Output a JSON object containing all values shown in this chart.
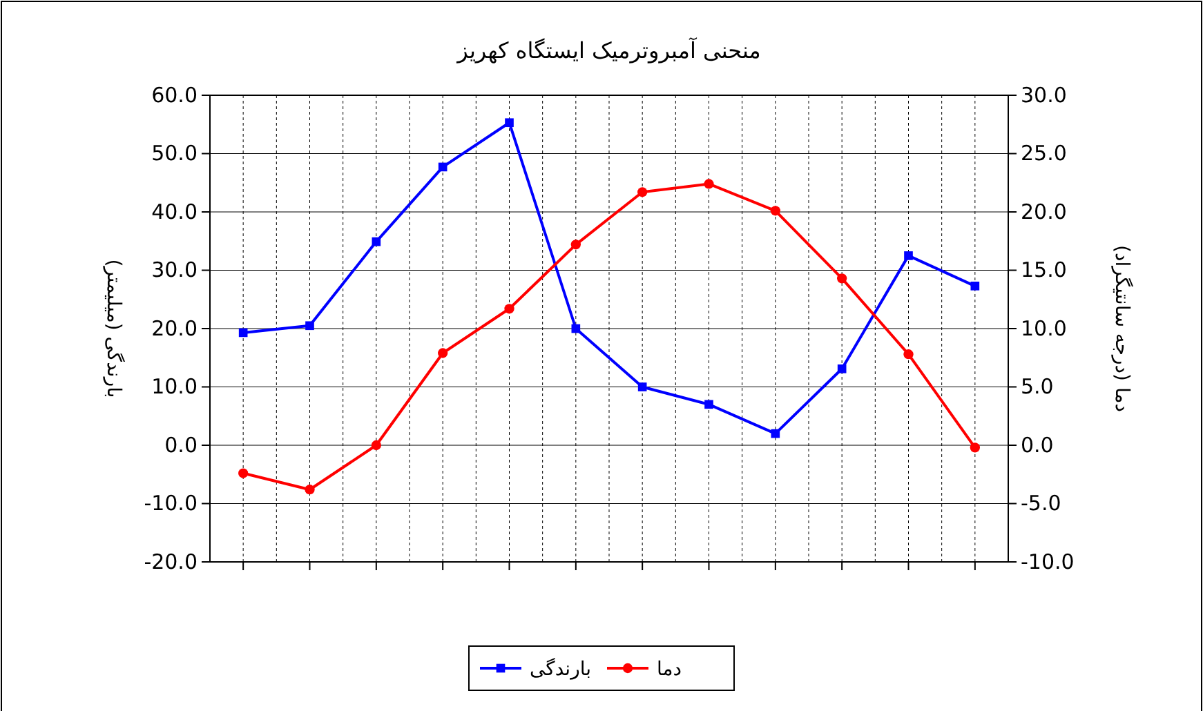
{
  "chart_data": {
    "type": "line",
    "title": "منحنی آمبروترمیک ایستگاه کهریز",
    "ylabel": "بارندگی (میلیمتر)",
    "y2label": "دما (درجه سانتیگراد)",
    "categories": [
      null,
      null,
      null,
      null,
      null,
      null,
      null,
      null,
      null,
      null,
      null,
      null
    ],
    "series": [
      {
        "name": "بارندگی",
        "color": "#0000ff",
        "marker": "square",
        "values": [
          19.3,
          20.5,
          34.9,
          47.7,
          55.3,
          20.0,
          10.0,
          7.0,
          2.0,
          13.1,
          32.5,
          27.3
        ]
      },
      {
        "name": "دما",
        "color": "#ff0000",
        "marker": "circle",
        "axis": "y2",
        "values": [
          -2.4,
          -3.8,
          0.0,
          7.9,
          11.7,
          17.2,
          21.7,
          22.4,
          20.1,
          14.3,
          7.8,
          -0.2
        ]
      }
    ],
    "ylim": [
      -20,
      60
    ],
    "yticks": [
      {
        "value": -20,
        "label": "-20.0"
      },
      {
        "value": -10,
        "label": "-10.0"
      },
      {
        "value": 0,
        "label": "0.0"
      },
      {
        "value": 10,
        "label": "10.0"
      },
      {
        "value": 20,
        "label": "20.0"
      },
      {
        "value": 30,
        "label": "30.0"
      },
      {
        "value": 40,
        "label": "40.0"
      },
      {
        "value": 50,
        "label": "50.0"
      },
      {
        "value": 60,
        "label": "60.0"
      }
    ],
    "y2lim": [
      -10,
      30
    ],
    "y2ticks": [
      {
        "value": -10,
        "label": "-10.0"
      },
      {
        "value": -5,
        "label": "-5.0"
      },
      {
        "value": 0,
        "label": "0.0"
      },
      {
        "value": 5,
        "label": "5.0"
      },
      {
        "value": 10,
        "label": "10.0"
      },
      {
        "value": 15,
        "label": "15.0"
      },
      {
        "value": 20,
        "label": "20.0"
      },
      {
        "value": 25,
        "label": "25.0"
      },
      {
        "value": 30,
        "label": "30.0"
      }
    ],
    "grid": true,
    "legend": "bottom"
  }
}
